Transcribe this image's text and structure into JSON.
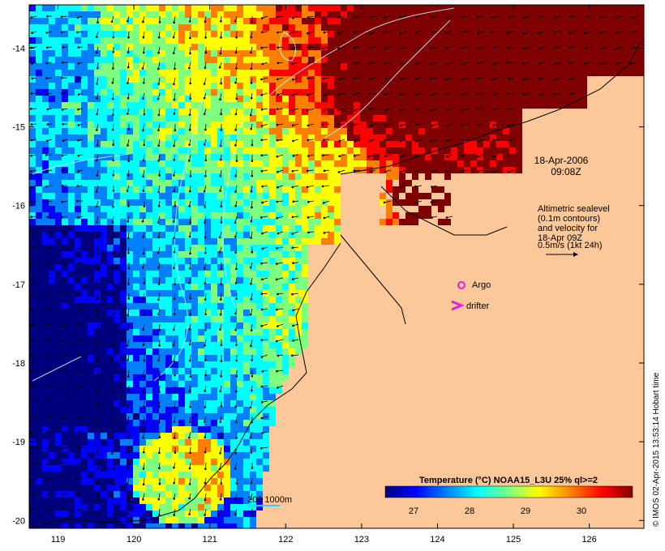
{
  "map": {
    "timestamp_line1": "18-Apr-2006",
    "timestamp_line2": "09:08Z",
    "altimetry_note": [
      "Altimetric sealevel",
      "(0.1m contours)",
      "and velocity for",
      "18-Apr 09Z",
      "0.5m/s (1kt 24h)"
    ],
    "legend_argo": "Argo",
    "legend_drifter": "drifter",
    "depth_contours_label": "200  1000m",
    "colorbar_title": "Temperature (°C) NOAA15_L3U 25% ql>=2",
    "colorbar_ticks": [
      "27",
      "28",
      "29",
      "30"
    ],
    "credit": "© IMOS 02-Apr-2015 13:53:14 Hobart time",
    "lon_ticks": [
      "119",
      "120",
      "121",
      "122",
      "123",
      "124",
      "125",
      "126"
    ],
    "lat_ticks": [
      "-14",
      "-15",
      "-16",
      "-17",
      "-18",
      "-19",
      "-20"
    ],
    "colors": {
      "land": "#fcc89a",
      "argo": "#e020e0",
      "drifter": "#e020e0",
      "contour": "#7fe0ff",
      "colormap": [
        "#00007f",
        "#0000ff",
        "#007fff",
        "#00ffff",
        "#7fff7f",
        "#ffff00",
        "#ff7f00",
        "#ff0000",
        "#7f0000"
      ]
    }
  }
}
